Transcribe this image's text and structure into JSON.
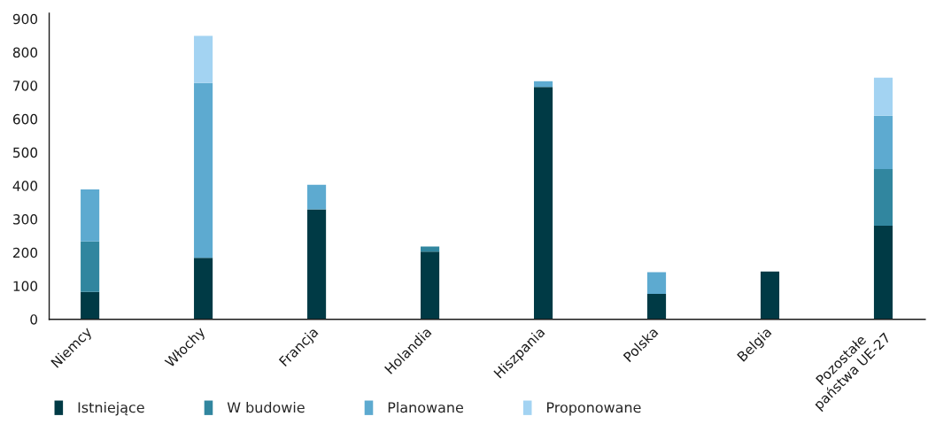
{
  "chart_data": {
    "type": "bar",
    "stacked": true,
    "categories": [
      "Niemcy",
      "Włochy",
      "Francja",
      "Holandia",
      "Hiszpania",
      "Polska",
      "Belgia",
      "Pozostałe\npaństwa UE-27"
    ],
    "series": [
      {
        "name": "Istniejące",
        "color": "#003a45",
        "values": [
          82,
          184,
          329,
          203,
          696,
          76,
          143,
          280
        ]
      },
      {
        "name": "W budowie",
        "color": "#31869f",
        "values": [
          151,
          0,
          0,
          15,
          0,
          0,
          0,
          170
        ]
      },
      {
        "name": "Planowane",
        "color": "#5daad0",
        "values": [
          156,
          524,
          74,
          0,
          17,
          65,
          0,
          160
        ]
      },
      {
        "name": "Proponowane",
        "color": "#a3d3f2",
        "values": [
          0,
          141,
          0,
          0,
          0,
          0,
          0,
          114
        ]
      }
    ],
    "ylim": [
      0,
      917
    ],
    "yticks": [
      0,
      100,
      200,
      300,
      400,
      500,
      600,
      700,
      800,
      900
    ],
    "grid": false,
    "legend": "bottom"
  }
}
